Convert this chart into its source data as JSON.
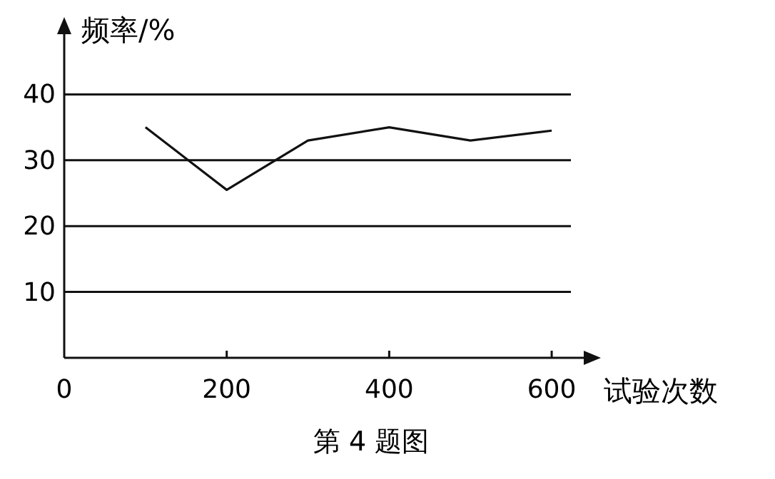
{
  "chart_data": {
    "type": "line",
    "xlabel": "试验次数",
    "ylabel": "频率/%",
    "annotations": [
      "第 4 题图"
    ],
    "x": [
      100,
      200,
      300,
      400,
      500,
      600
    ],
    "values": [
      35,
      25.5,
      33,
      35,
      33,
      34.5
    ],
    "color": "#111111",
    "xlim": [
      0,
      650
    ],
    "ylim": [
      0,
      50
    ],
    "xticks": [
      0,
      200,
      400,
      600
    ],
    "yticks": [
      10,
      20,
      30,
      40
    ],
    "grid": "y"
  }
}
